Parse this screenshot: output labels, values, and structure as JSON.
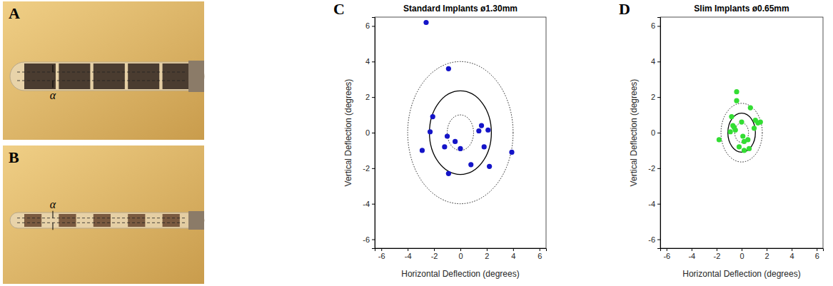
{
  "photos": [
    {
      "panel": "A",
      "label": "α"
    },
    {
      "panel": "B",
      "label": "α"
    }
  ],
  "chart_data": [
    {
      "type": "scatter",
      "panel": "C",
      "title": "Standard Implants ø1.30mm",
      "xlabel": "Horizontal Deflection (degrees)",
      "ylabel": "Vertical Deflection (degrees)",
      "xlim": [
        -6.5,
        6.5
      ],
      "ylim": [
        -6.5,
        6.5
      ],
      "xticks": [
        -6,
        -4,
        -2,
        0,
        2,
        4,
        6
      ],
      "yticks": [
        -6,
        -4,
        -2,
        0,
        2,
        4,
        6
      ],
      "center": [
        0,
        0
      ],
      "circles": [
        {
          "radius": 1.0,
          "line_style": "dotted"
        },
        {
          "radius": 2.35,
          "line_style": "solid"
        },
        {
          "radius": 4.0,
          "line_style": "dotted"
        }
      ],
      "series": [
        {
          "color": "#1414c8",
          "marker": "circle",
          "x": [
            -2.6,
            -0.9,
            -2.1,
            -2.3,
            -2.9,
            -1.2,
            -1.0,
            -0.4,
            0.0,
            -0.9,
            0.8,
            1.4,
            1.6,
            2.1,
            1.8,
            2.2,
            3.9
          ],
          "values": [
            6.2,
            3.6,
            0.9,
            0.05,
            -1.0,
            -0.8,
            -0.2,
            -0.5,
            -0.9,
            -2.3,
            -1.8,
            0.1,
            0.4,
            0.15,
            -0.8,
            -1.9,
            -1.1
          ]
        }
      ]
    },
    {
      "type": "scatter",
      "panel": "D",
      "title": "Slim Implants ø0.65mm",
      "xlabel": "Horizontal Deflection (degrees)",
      "ylabel": "Vertical Deflection (degrees)",
      "xlim": [
        -6.5,
        6.5
      ],
      "ylim": [
        -6.5,
        6.5
      ],
      "xticks": [
        -6,
        -4,
        -2,
        0,
        2,
        4,
        6
      ],
      "yticks": [
        -6,
        -4,
        -2,
        0,
        2,
        4,
        6
      ],
      "center": [
        0,
        0
      ],
      "circles": [
        {
          "radius": 0.55,
          "line_style": "dotted"
        },
        {
          "radius": 1.1,
          "line_style": "solid"
        },
        {
          "radius": 1.65,
          "line_style": "dotted"
        }
      ],
      "series": [
        {
          "color": "#33dd33",
          "marker": "circle",
          "x": [
            -1.8,
            -0.4,
            -0.4,
            0.7,
            -0.8,
            -0.7,
            -0.9,
            -0.5,
            -0.6,
            1.1,
            1.3,
            1.5,
            1.0,
            0.1,
            0.2,
            0.5,
            -0.2,
            0.2,
            0.6,
            0.0
          ],
          "values": [
            -0.4,
            2.3,
            1.8,
            1.4,
            0.9,
            0.4,
            0.05,
            0.15,
            0.3,
            0.7,
            0.55,
            0.6,
            0.25,
            -0.2,
            -0.5,
            -0.4,
            -0.8,
            -1.0,
            -0.9,
            0.6
          ]
        }
      ]
    }
  ]
}
